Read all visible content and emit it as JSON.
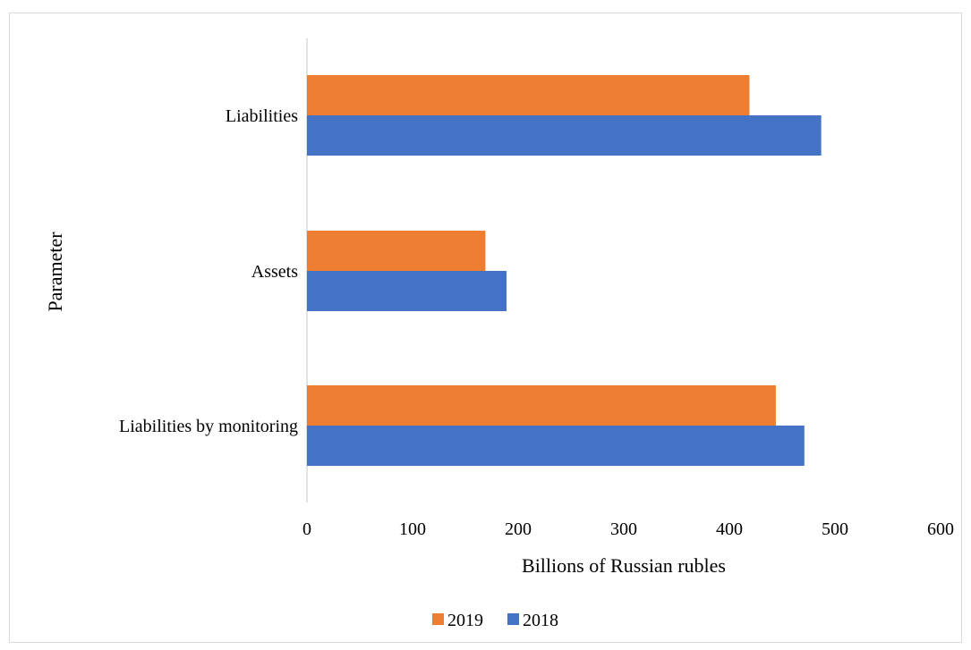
{
  "chart_data": {
    "type": "bar",
    "orientation": "horizontal",
    "title": "",
    "xlabel": "Billions of Russian rubles",
    "ylabel": "Parameter",
    "xlim": [
      0,
      600
    ],
    "xticks": [
      0,
      100,
      200,
      300,
      400,
      500,
      600
    ],
    "xtick_labels": [
      "0",
      "100",
      "200",
      "300",
      "400",
      "500",
      "600"
    ],
    "grid": false,
    "legend_position": "bottom",
    "categories": [
      "Liabilities",
      "Assets",
      "Liabilities by monitoring"
    ],
    "series": [
      {
        "name": "2019",
        "color": "#ED7D31",
        "values": [
          419,
          169,
          444
        ]
      },
      {
        "name": "2018",
        "color": "#4472C4",
        "values": [
          487,
          189,
          471
        ]
      }
    ],
    "legend_order": [
      "2019",
      "2018"
    ]
  }
}
